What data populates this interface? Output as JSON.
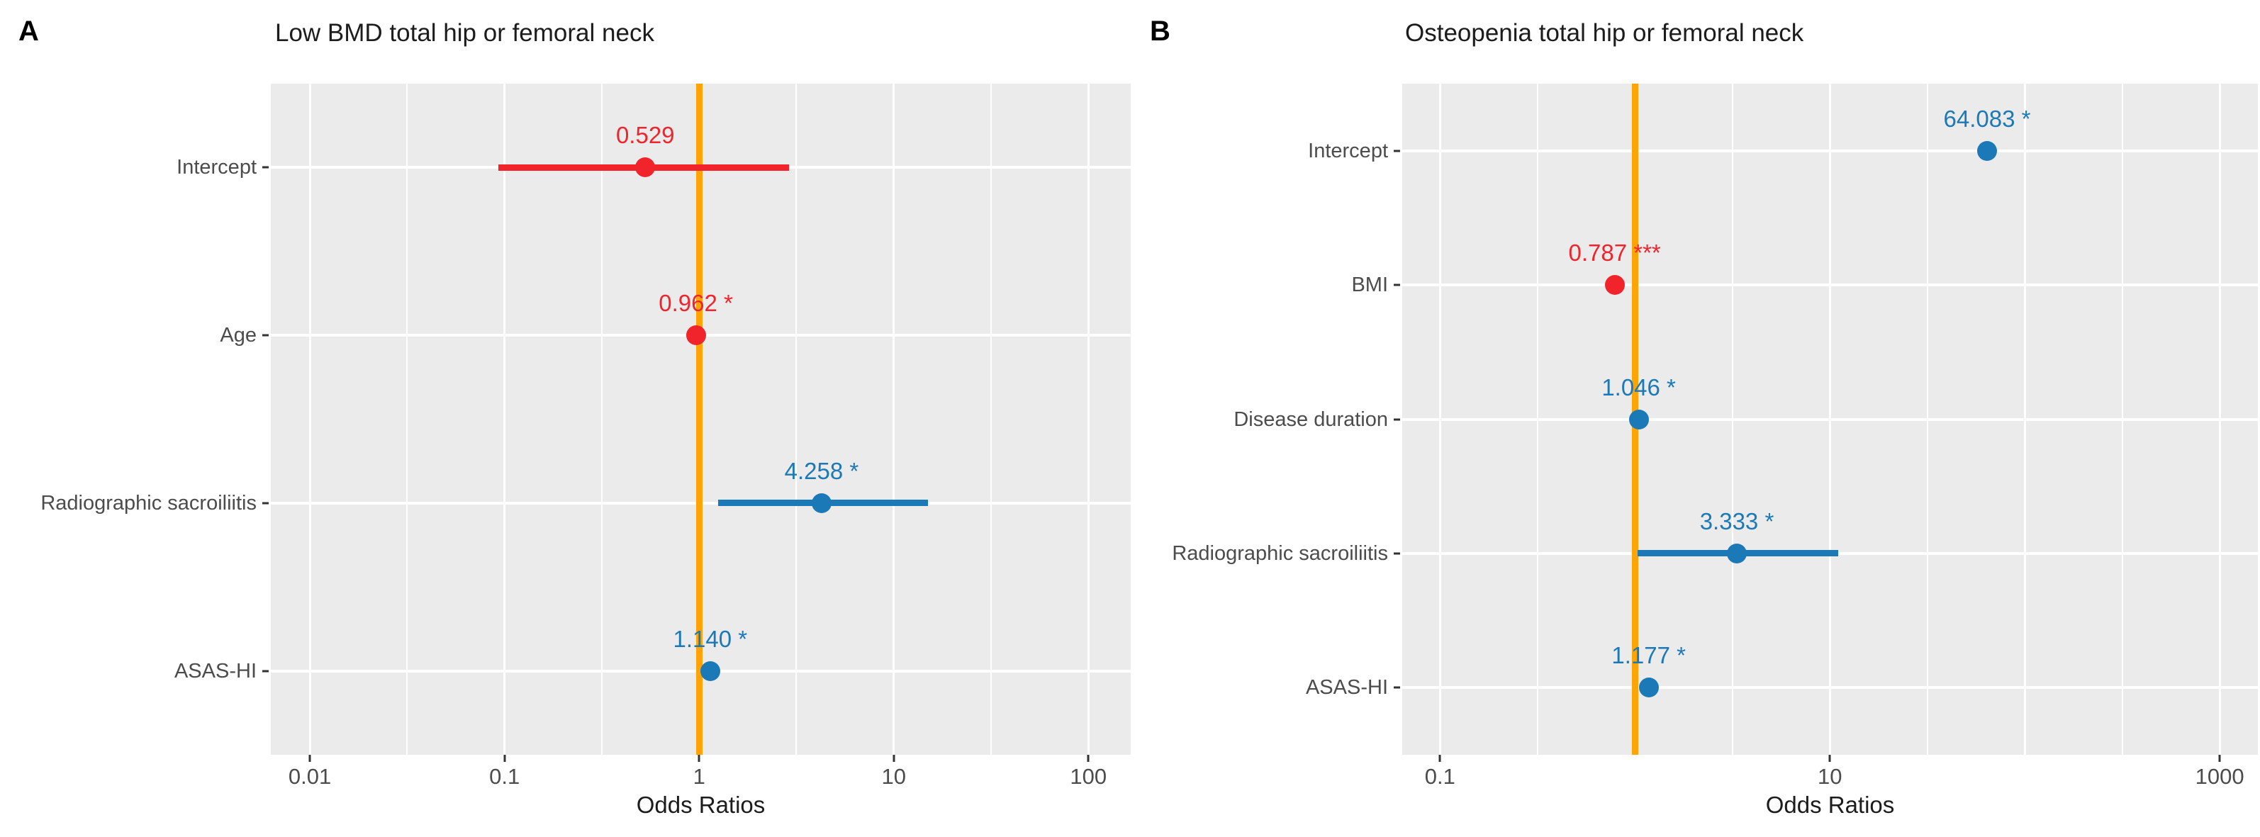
{
  "figure": {
    "background": "#ffffff"
  },
  "colors": {
    "panel_bg": "#ebebeb",
    "grid": "#ffffff",
    "ref_line": "#ffa406",
    "positive": "#1b79b7",
    "negative": "#f1242b",
    "axis_text": "#4c4c4c",
    "title_text": "#1c1c1c"
  },
  "chart_data": {
    "type": "forest",
    "x_scale": "log10",
    "xlabel": "Odds Ratios",
    "panels": [
      {
        "panel_label": "A",
        "title": "Low BMD total hip or femoral neck",
        "xlabel": "Odds Ratios",
        "xlim": [
          0.0063,
          165
        ],
        "ref_line": 1,
        "x_major_gridlines": [
          0.01,
          0.1,
          1,
          10,
          100
        ],
        "x_minor_gridlines": [
          0.0316,
          0.316,
          3.16,
          31.6
        ],
        "x_ticks": [
          0.01,
          0.1,
          1,
          10,
          100
        ],
        "x_tick_labels": [
          "0.01",
          "0.1",
          "1",
          "10",
          "100"
        ],
        "rows": [
          {
            "label": "Intercept",
            "estimate": 0.529,
            "ci_low": 0.093,
            "ci_high": 2.9,
            "value_label": "0.529",
            "color": "negative"
          },
          {
            "label": "Age",
            "estimate": 0.962,
            "ci_low": null,
            "ci_high": null,
            "value_label": "0.962 *",
            "color": "negative"
          },
          {
            "label": "Radiographic sacroiliitis",
            "estimate": 4.258,
            "ci_low": 1.25,
            "ci_high": 15.0,
            "value_label": "4.258 *",
            "color": "positive"
          },
          {
            "label": "ASAS-HI",
            "estimate": 1.14,
            "ci_low": null,
            "ci_high": null,
            "value_label": "1.140 *",
            "color": "positive"
          }
        ]
      },
      {
        "panel_label": "B",
        "title": "Osteopenia total hip or femoral neck",
        "xlabel": "Odds Ratios",
        "xlim": [
          0.064,
          1570
        ],
        "ref_line": 1,
        "x_major_gridlines": [
          0.1,
          1,
          10,
          100,
          1000
        ],
        "x_minor_gridlines": [
          0.316,
          3.16,
          31.6,
          316
        ],
        "x_ticks": [
          0.1,
          10,
          1000
        ],
        "x_tick_labels": [
          "0.1",
          "10",
          "1000"
        ],
        "rows": [
          {
            "label": "Intercept",
            "estimate": 64.083,
            "ci_low": null,
            "ci_high": null,
            "value_label": "64.083 *",
            "color": "positive"
          },
          {
            "label": "BMI",
            "estimate": 0.787,
            "ci_low": null,
            "ci_high": null,
            "value_label": "0.787 ***",
            "color": "negative"
          },
          {
            "label": "Disease duration",
            "estimate": 1.046,
            "ci_low": null,
            "ci_high": null,
            "value_label": "1.046 *",
            "color": "positive"
          },
          {
            "label": "Radiographic sacroiliitis",
            "estimate": 3.333,
            "ci_low": 1.03,
            "ci_high": 11.0,
            "value_label": "3.333 *",
            "color": "positive"
          },
          {
            "label": "ASAS-HI",
            "estimate": 1.177,
            "ci_low": null,
            "ci_high": null,
            "value_label": "1.177 *",
            "color": "positive"
          }
        ]
      }
    ]
  }
}
